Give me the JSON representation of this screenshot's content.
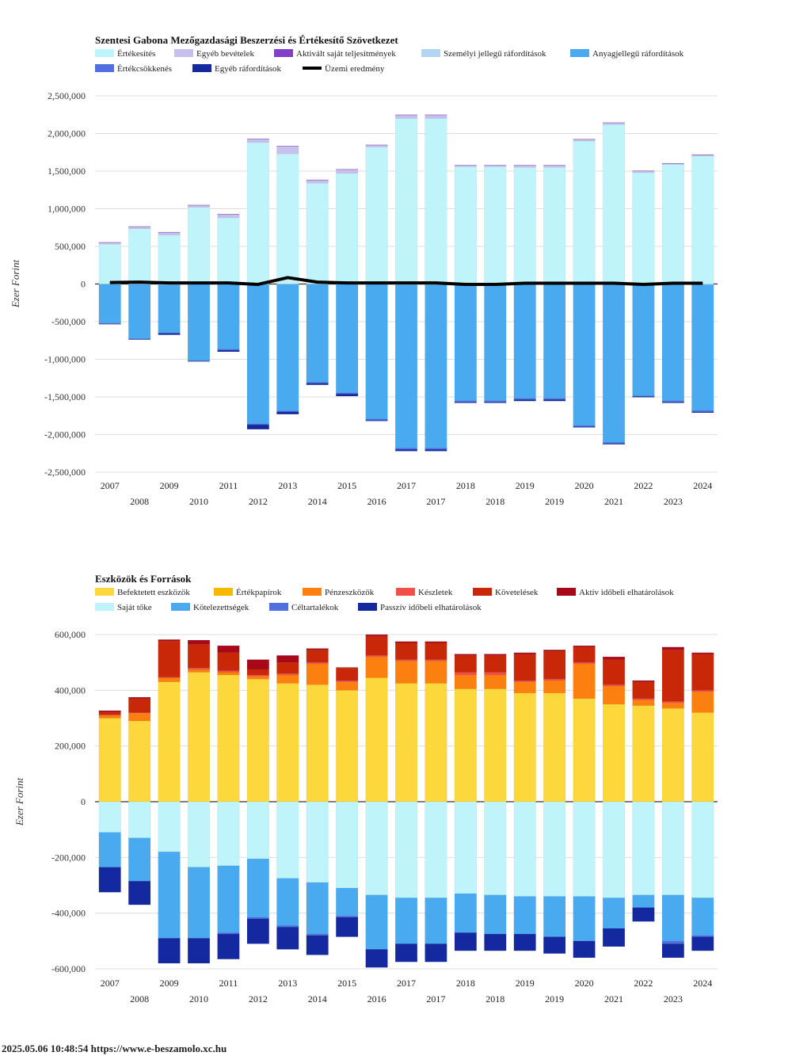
{
  "footer": {
    "timestamp": "2025.05.06 10:48:54",
    "url": "https://www.e-beszamolo.xc.hu"
  },
  "chart_data": [
    {
      "type": "bar",
      "stacked": true,
      "title": "Szentesi Gabona Mezőgazdasági Beszerzési és Értékesítő Szövetkezet",
      "ylabel": "Ezer Forint",
      "xlabel": "",
      "ylim": [
        -2500000,
        2500000
      ],
      "yticks": [
        2500000,
        2000000,
        1500000,
        1000000,
        500000,
        0,
        -500000,
        -1000000,
        -1500000,
        -2000000,
        -2500000
      ],
      "ytick_labels": [
        "2,500,000",
        "2,000,000",
        "1,500,000",
        "1,000,000",
        "500,000",
        "0",
        "-500,000",
        "-1,000,000",
        "-1,500,000",
        "-2,000,000",
        "-2,500,000"
      ],
      "grid": true,
      "legend_position": "top-left",
      "categories": [
        "2007",
        "2008",
        "2009",
        "2010",
        "2011",
        "2012",
        "2013",
        "2014",
        "2015",
        "2016",
        "2017",
        "2017",
        "2018",
        "2018",
        "2019",
        "2019",
        "2020",
        "2021",
        "2022",
        "2023",
        "2024"
      ],
      "series": [
        {
          "name": "Értékesítés",
          "color": "#bff4fb",
          "values": [
            530000,
            735000,
            650000,
            1020000,
            880000,
            1880000,
            1730000,
            1340000,
            1470000,
            1820000,
            2200000,
            2200000,
            1560000,
            1560000,
            1550000,
            1550000,
            1900000,
            2120000,
            1480000,
            1590000,
            1700000
          ]
        },
        {
          "name": "Egyéb bevételek",
          "color": "#c8c0ec",
          "values": [
            20000,
            25000,
            35000,
            25000,
            45000,
            45000,
            100000,
            40000,
            50000,
            25000,
            45000,
            45000,
            15000,
            15000,
            25000,
            25000,
            20000,
            20000,
            20000,
            10000,
            15000
          ]
        },
        {
          "name": "Aktivált saját teljesítmények",
          "color": "#8040c8",
          "values": [
            5000,
            5000,
            5000,
            5000,
            5000,
            5000,
            5000,
            5000,
            5000,
            5000,
            5000,
            5000,
            5000,
            5000,
            5000,
            5000,
            5000,
            5000,
            5000,
            5000,
            5000
          ]
        },
        {
          "name": "Személyi jellegű ráfordítások",
          "color": "#b4d4f0",
          "values": [
            -5000,
            -5000,
            -10000,
            -5000,
            -5000,
            -5000,
            -5000,
            -5000,
            -5000,
            -5000,
            -10000,
            -10000,
            -10000,
            -10000,
            -10000,
            -10000,
            -10000,
            -5000,
            -5000,
            -10000,
            -10000
          ]
        },
        {
          "name": "Anyagjellegű ráfordítások",
          "color": "#4aaaf0",
          "values": [
            -515000,
            -720000,
            -635000,
            -1010000,
            -860000,
            -1850000,
            -1680000,
            -1300000,
            -1440000,
            -1790000,
            -2170000,
            -2170000,
            -1540000,
            -1540000,
            -1510000,
            -1510000,
            -1870000,
            -2100000,
            -1480000,
            -1540000,
            -1670000
          ]
        },
        {
          "name": "Értékcsökkenés",
          "color": "#5070e0",
          "values": [
            -10000,
            -10000,
            -10000,
            -10000,
            -15000,
            -15000,
            -15000,
            -15000,
            -15000,
            -15000,
            -20000,
            -20000,
            -20000,
            -20000,
            -15000,
            -15000,
            -15000,
            -15000,
            -10000,
            -20000,
            -20000
          ]
        },
        {
          "name": "Egyéb ráfordítások",
          "color": "#1428a0",
          "values": [
            -5000,
            -5000,
            -20000,
            -5000,
            -20000,
            -60000,
            -30000,
            -20000,
            -30000,
            -10000,
            -20000,
            -20000,
            -10000,
            -10000,
            -20000,
            -20000,
            -10000,
            -10000,
            -10000,
            -10000,
            -10000
          ]
        },
        {
          "name": "Üzemi eredmény",
          "color": "#000000",
          "type": "line",
          "values": [
            20000,
            25000,
            15000,
            15000,
            15000,
            -5000,
            85000,
            25000,
            15000,
            15000,
            15000,
            15000,
            -5000,
            -5000,
            10000,
            10000,
            10000,
            10000,
            -5000,
            10000,
            10000
          ]
        }
      ]
    },
    {
      "type": "bar",
      "stacked": true,
      "title": "Eszközök és Források",
      "ylabel": "Ezer Forint",
      "xlabel": "",
      "ylim": [
        -600000,
        600000
      ],
      "yticks": [
        600000,
        400000,
        200000,
        0,
        -200000,
        -400000,
        -600000
      ],
      "ytick_labels": [
        "600,000",
        "400,000",
        "200,000",
        "0",
        "-200,000",
        "-400,000",
        "-600,000"
      ],
      "grid": true,
      "legend_position": "top-left",
      "categories": [
        "2007",
        "2008",
        "2009",
        "2010",
        "2011",
        "2012",
        "2013",
        "2014",
        "2015",
        "2016",
        "2017",
        "2017",
        "2018",
        "2018",
        "2019",
        "2019",
        "2020",
        "2021",
        "2022",
        "2023",
        "2024"
      ],
      "series": [
        {
          "name": "Befektetett eszközök",
          "color": "#fdd83c",
          "values": [
            300000,
            290000,
            430000,
            465000,
            455000,
            440000,
            425000,
            420000,
            400000,
            445000,
            425000,
            425000,
            405000,
            405000,
            390000,
            390000,
            370000,
            350000,
            345000,
            335000,
            320000
          ]
        },
        {
          "name": "Értékpapírok",
          "color": "#f8b800",
          "values": [
            0,
            0,
            0,
            0,
            0,
            0,
            0,
            0,
            0,
            0,
            0,
            0,
            0,
            0,
            0,
            0,
            0,
            0,
            0,
            0,
            0
          ]
        },
        {
          "name": "Pénzeszközök",
          "color": "#fb8010",
          "values": [
            10000,
            28000,
            15000,
            10000,
            10000,
            10000,
            30000,
            75000,
            30000,
            75000,
            80000,
            80000,
            50000,
            50000,
            40000,
            45000,
            125000,
            65000,
            20000,
            20000,
            75000
          ]
        },
        {
          "name": "Készletek",
          "color": "#f05048",
          "values": [
            2000,
            2000,
            2000,
            5000,
            5000,
            5000,
            5000,
            5000,
            5000,
            5000,
            5000,
            5000,
            10000,
            10000,
            5000,
            5000,
            5000,
            5000,
            5000,
            5000,
            5000
          ]
        },
        {
          "name": "Követelések",
          "color": "#c82808",
          "values": [
            10000,
            50000,
            130000,
            85000,
            65000,
            20000,
            40000,
            45000,
            45000,
            70000,
            60000,
            60000,
            60000,
            60000,
            95000,
            100000,
            55000,
            90000,
            60000,
            185000,
            130000
          ]
        },
        {
          "name": "Aktív időbeli elhatárolások",
          "color": "#a80818",
          "values": [
            5000,
            5000,
            5000,
            15000,
            25000,
            35000,
            25000,
            5000,
            2000,
            5000,
            5000,
            5000,
            5000,
            5000,
            5000,
            5000,
            5000,
            10000,
            5000,
            10000,
            5000
          ]
        },
        {
          "name": "Saját tőke",
          "color": "#bff4fb",
          "values": [
            -110000,
            -130000,
            -180000,
            -235000,
            -230000,
            -205000,
            -275000,
            -290000,
            -310000,
            -335000,
            -345000,
            -345000,
            -330000,
            -335000,
            -340000,
            -340000,
            -340000,
            -345000,
            -335000,
            -335000,
            -345000
          ]
        },
        {
          "name": "Kötelezettségek",
          "color": "#4aaaf0",
          "values": [
            -125000,
            -155000,
            -310000,
            -255000,
            -240000,
            -210000,
            -170000,
            -185000,
            -100000,
            -195000,
            -165000,
            -165000,
            -140000,
            -140000,
            -135000,
            -145000,
            -160000,
            -110000,
            -45000,
            -165000,
            -135000
          ]
        },
        {
          "name": "Céltartalékok",
          "color": "#5070e0",
          "values": [
            0,
            0,
            0,
            0,
            -5000,
            -5000,
            -5000,
            -5000,
            -5000,
            0,
            0,
            0,
            0,
            0,
            0,
            0,
            0,
            0,
            0,
            -10000,
            -5000
          ]
        },
        {
          "name": "Passzív időbeli elhatárolások",
          "color": "#1428a0",
          "values": [
            -90000,
            -85000,
            -90000,
            -90000,
            -90000,
            -90000,
            -80000,
            -70000,
            -70000,
            -65000,
            -65000,
            -65000,
            -65000,
            -60000,
            -60000,
            -60000,
            -60000,
            -65000,
            -50000,
            -50000,
            -50000
          ]
        }
      ]
    }
  ]
}
